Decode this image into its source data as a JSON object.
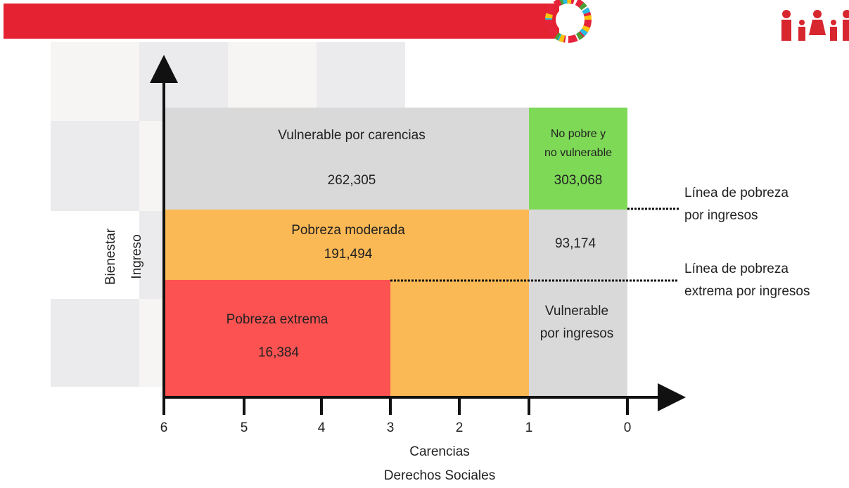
{
  "regions": {
    "vulnerable_carencias": {
      "label": "Vulnerable por carencias",
      "value": "262,305"
    },
    "no_pobre": {
      "label_lines": [
        "No pobre y",
        "no vulnerable"
      ],
      "value": "303,068"
    },
    "pobreza_moderada": {
      "label": "Pobreza moderada",
      "value": "191,494"
    },
    "vulnerable_ingresos": {
      "value": "93,174",
      "label_lines": [
        "Vulnerable",
        "por ingresos"
      ]
    },
    "pobreza_extrema": {
      "label": "Pobreza extrema",
      "value": "16,384"
    }
  },
  "lines": {
    "pobreza": [
      "Línea de pobreza",
      "por ingresos"
    ],
    "pobreza_extrema": [
      "Línea de pobreza",
      "extrema por ingresos"
    ]
  },
  "y_axis": {
    "labels": [
      "Bienestar",
      "Ingreso"
    ]
  },
  "x_axis": {
    "ticks": [
      "6",
      "5",
      "4",
      "3",
      "2",
      "1",
      "0"
    ],
    "labels": [
      "Carencias",
      "Derechos Sociales"
    ]
  }
}
